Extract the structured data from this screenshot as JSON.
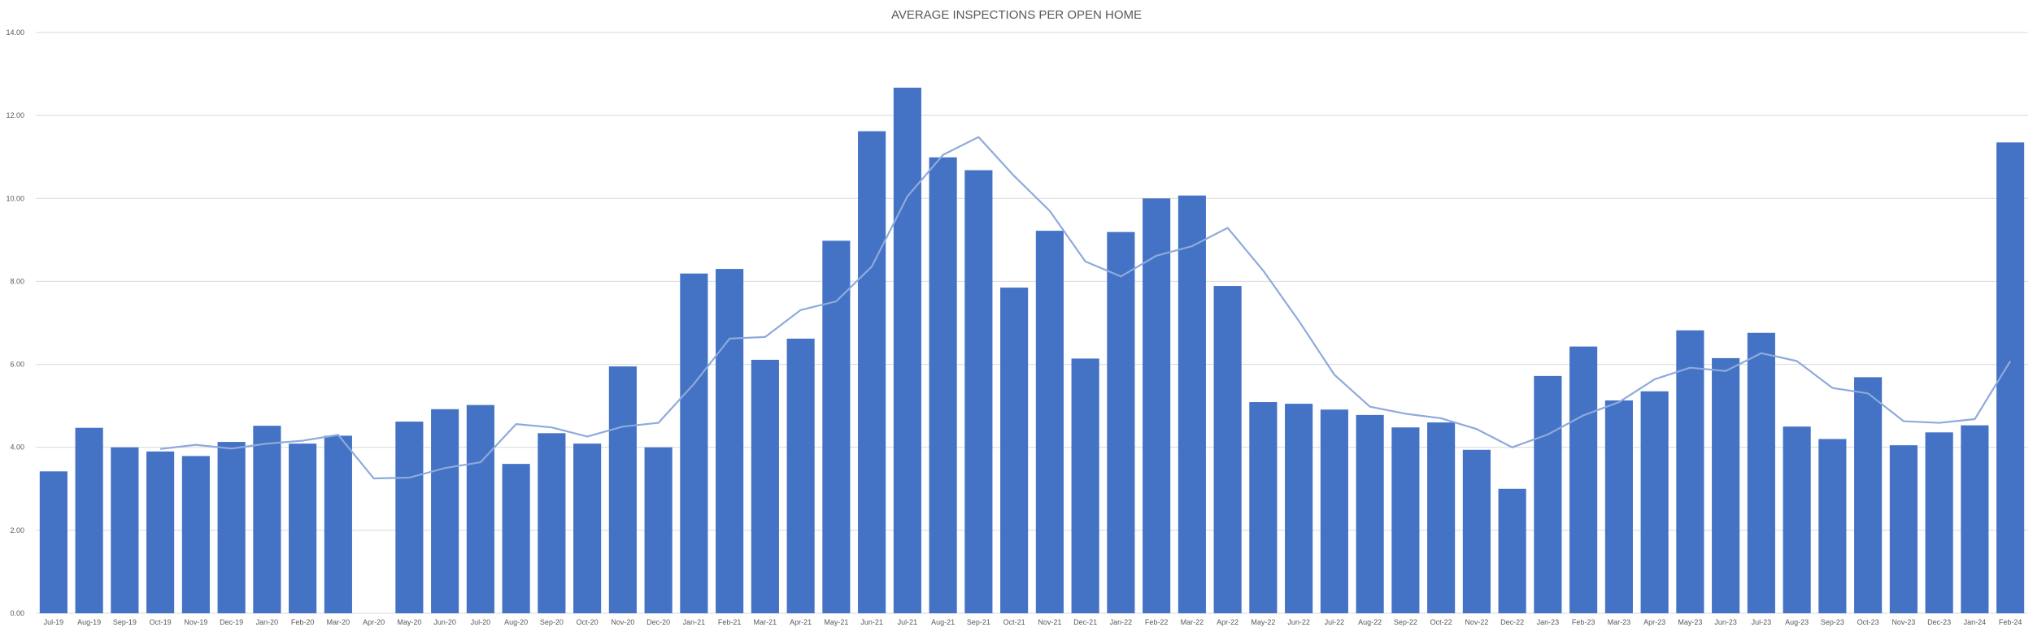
{
  "chart_data": {
    "type": "bar",
    "title": "AVERAGE INSPECTIONS PER OPEN HOME",
    "xlabel": "",
    "ylabel": "",
    "ylim": [
      0,
      14
    ],
    "y_ticks": [
      "0.00",
      "2.00",
      "4.00",
      "6.00",
      "8.00",
      "10.00",
      "12.00",
      "14.00"
    ],
    "y_tick_values": [
      0,
      2,
      4,
      6,
      8,
      10,
      12,
      14
    ],
    "grid": true,
    "legend": "none",
    "categories": [
      "Jul-19",
      "Aug-19",
      "Sep-19",
      "Oct-19",
      "Nov-19",
      "Dec-19",
      "Jan-20",
      "Feb-20",
      "Mar-20",
      "Apr-20",
      "May-20",
      "Jun-20",
      "Jul-20",
      "Aug-20",
      "Sep-20",
      "Oct-20",
      "Nov-20",
      "Dec-20",
      "Jan-21",
      "Feb-21",
      "Mar-21",
      "Apr-21",
      "May-21",
      "Jun-21",
      "Jul-21",
      "Aug-21",
      "Sep-21",
      "Oct-21",
      "Nov-21",
      "Dec-21",
      "Jan-22",
      "Feb-22",
      "Mar-22",
      "Apr-22",
      "May-22",
      "Jun-22",
      "Jul-22",
      "Aug-22",
      "Sep-22",
      "Oct-22",
      "Nov-22",
      "Dec-22",
      "Jan-23",
      "Feb-23",
      "Mar-23",
      "Apr-23",
      "May-23",
      "Jun-23",
      "Jul-23",
      "Aug-23",
      "Sep-23",
      "Oct-23",
      "Nov-23",
      "Dec-23",
      "Jan-24",
      "Feb-24"
    ],
    "series": [
      {
        "kind": "bar",
        "color": "#4472c4",
        "values": [
          3.42,
          4.47,
          4.0,
          3.9,
          3.79,
          4.13,
          4.52,
          4.09,
          4.28,
          null,
          4.62,
          4.92,
          5.02,
          3.6,
          4.34,
          4.09,
          5.95,
          4.0,
          8.19,
          8.3,
          6.11,
          6.62,
          8.98,
          11.62,
          12.67,
          10.99,
          10.68,
          7.85,
          9.22,
          6.14,
          9.19,
          10.0,
          10.07,
          7.89,
          5.09,
          5.05,
          4.91,
          4.78,
          4.48,
          4.6,
          3.94,
          3.0,
          5.72,
          6.43,
          5.13,
          5.35,
          6.82,
          6.15,
          6.76,
          4.5,
          4.2,
          5.69,
          4.05,
          4.36,
          4.53,
          11.35
        ]
      },
      {
        "kind": "line",
        "color": "#8eaadb",
        "values": [
          null,
          null,
          null,
          3.96,
          4.06,
          3.97,
          4.09,
          4.16,
          4.3,
          3.25,
          3.27,
          3.5,
          3.64,
          4.56,
          4.48,
          4.26,
          4.5,
          4.59,
          5.53,
          6.62,
          6.66,
          7.31,
          7.52,
          8.36,
          10.05,
          11.05,
          11.48,
          10.54,
          9.7,
          8.48,
          8.12,
          8.62,
          8.85,
          9.29,
          8.26,
          7.05,
          5.75,
          4.98,
          4.81,
          4.7,
          4.44,
          4.0,
          4.31,
          4.77,
          5.09,
          5.64,
          5.92,
          5.84,
          6.27,
          6.08,
          5.43,
          5.3,
          4.63,
          4.59,
          4.68,
          6.08
        ]
      }
    ]
  }
}
